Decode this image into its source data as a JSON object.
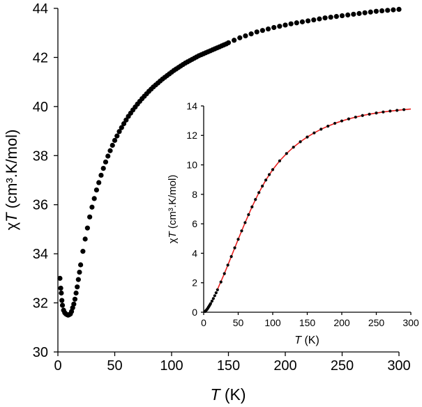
{
  "chart_data": [
    {
      "type": "scatter",
      "xlabel_italic": "T",
      "xlabel_rest": " (K)",
      "ylabel_greek": "χ",
      "ylabel_italic": "T",
      "ylabel_rest": " (cm³.K/mol)",
      "xlim": [
        0,
        300
      ],
      "ylim": [
        30,
        44
      ],
      "xticks": [
        0,
        50,
        100,
        150,
        200,
        250,
        300
      ],
      "yticks": [
        30,
        32,
        34,
        36,
        38,
        40,
        42,
        44
      ],
      "marker_color": "#000000",
      "series": [
        {
          "x": [
            1.8,
            2.5,
            3,
            3.5,
            4,
            5,
            6,
            7,
            8,
            9,
            10,
            11,
            12,
            13,
            14,
            15,
            16,
            17,
            18,
            19,
            20,
            22,
            24,
            26,
            28,
            30,
            32,
            34,
            36,
            38,
            40,
            42,
            44,
            46,
            48,
            50,
            52,
            54,
            56,
            58,
            60,
            62,
            64,
            66,
            68,
            70,
            72,
            74,
            76,
            78,
            80,
            82,
            84,
            86,
            88,
            90,
            92,
            94,
            96,
            98,
            100,
            102,
            104,
            106,
            108,
            110,
            112,
            114,
            116,
            118,
            120,
            122,
            124,
            126,
            128,
            130,
            132,
            134,
            136,
            138,
            140,
            142,
            144,
            146,
            148,
            150,
            155,
            160,
            165,
            170,
            175,
            180,
            185,
            190,
            195,
            200,
            205,
            210,
            215,
            220,
            225,
            230,
            235,
            240,
            245,
            250,
            255,
            260,
            265,
            270,
            275,
            280,
            285,
            290,
            295,
            300
          ],
          "y": [
            33.0,
            32.6,
            32.4,
            32.1,
            31.9,
            31.7,
            31.6,
            31.55,
            31.52,
            31.5,
            31.52,
            31.55,
            31.65,
            31.8,
            31.95,
            32.15,
            32.4,
            32.65,
            32.95,
            33.25,
            33.55,
            34.1,
            34.6,
            35.05,
            35.5,
            35.9,
            36.25,
            36.6,
            36.9,
            37.2,
            37.48,
            37.74,
            37.98,
            38.2,
            38.42,
            38.62,
            38.8,
            38.98,
            39.14,
            39.3,
            39.45,
            39.6,
            39.73,
            39.86,
            39.98,
            40.1,
            40.21,
            40.32,
            40.42,
            40.52,
            40.62,
            40.71,
            40.8,
            40.88,
            40.96,
            41.04,
            41.12,
            41.19,
            41.26,
            41.33,
            41.4,
            41.47,
            41.53,
            41.59,
            41.65,
            41.71,
            41.77,
            41.82,
            41.87,
            41.92,
            41.97,
            42.02,
            42.07,
            42.11,
            42.15,
            42.19,
            42.23,
            42.27,
            42.31,
            42.35,
            42.39,
            42.43,
            42.47,
            42.51,
            42.55,
            42.6,
            42.7,
            42.8,
            42.88,
            42.96,
            43.04,
            43.1,
            43.16,
            43.22,
            43.27,
            43.32,
            43.37,
            43.41,
            43.45,
            43.49,
            43.53,
            43.57,
            43.61,
            43.64,
            43.67,
            43.7,
            43.73,
            43.76,
            43.79,
            43.82,
            43.85,
            43.88,
            43.9,
            43.92,
            43.94,
            43.96
          ]
        }
      ]
    },
    {
      "type": "scatter",
      "inset": true,
      "xlabel_italic": "T",
      "xlabel_rest": " (K)",
      "ylabel_greek": "χ",
      "ylabel_italic": "T",
      "ylabel_rest": " (cm³.K/mol)",
      "xlim": [
        0,
        300
      ],
      "ylim": [
        0,
        14
      ],
      "xticks": [
        0,
        50,
        100,
        150,
        200,
        250,
        300
      ],
      "yticks": [
        0,
        2,
        4,
        6,
        8,
        10,
        12,
        14
      ],
      "marker_color": "#000000",
      "fit_color": "#e8201f",
      "series": [
        {
          "x": [
            2,
            3,
            4,
            5,
            6,
            7,
            8,
            9,
            10,
            12,
            14,
            16,
            18,
            20,
            25,
            30,
            35,
            40,
            45,
            50,
            55,
            60,
            65,
            70,
            75,
            80,
            85,
            90,
            95,
            100,
            110,
            120,
            130,
            140,
            150,
            160,
            170,
            180,
            190,
            200,
            210,
            220,
            230,
            240,
            250,
            260,
            270,
            280,
            290
          ],
          "y": [
            0.05,
            0.1,
            0.15,
            0.2,
            0.27,
            0.35,
            0.42,
            0.5,
            0.58,
            0.75,
            0.93,
            1.12,
            1.32,
            1.52,
            2.05,
            2.62,
            3.2,
            3.78,
            4.37,
            4.95,
            5.52,
            6.08,
            6.62,
            7.15,
            7.65,
            8.12,
            8.56,
            8.97,
            9.34,
            9.68,
            10.27,
            10.77,
            11.2,
            11.57,
            11.89,
            12.17,
            12.42,
            12.63,
            12.82,
            12.98,
            13.12,
            13.24,
            13.35,
            13.44,
            13.52,
            13.59,
            13.65,
            13.7,
            13.75
          ]
        }
      ],
      "fit": {
        "x": [
          20,
          30,
          40,
          50,
          60,
          70,
          80,
          90,
          100,
          110,
          120,
          130,
          140,
          150,
          160,
          170,
          180,
          190,
          200,
          210,
          220,
          230,
          240,
          250,
          260,
          270,
          280,
          290,
          300
        ],
        "y": [
          1.55,
          2.62,
          3.78,
          4.95,
          6.08,
          7.15,
          8.12,
          8.97,
          9.68,
          10.27,
          10.77,
          11.2,
          11.57,
          11.89,
          12.17,
          12.42,
          12.63,
          12.82,
          12.98,
          13.12,
          13.24,
          13.35,
          13.44,
          13.52,
          13.59,
          13.65,
          13.7,
          13.75,
          13.79
        ]
      }
    }
  ]
}
